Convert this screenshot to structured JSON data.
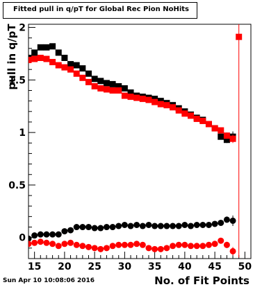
{
  "title": "Fitted pull in q/pT for Global Rec Pion NoHits",
  "footer_timestamp": "Sun Apr 10 10:08:06 2016",
  "chart_data": {
    "type": "scatter",
    "title": "Fitted pull in q/pT for Global Rec Pion NoHits",
    "xlabel": "No. of Fit Points",
    "ylabel": "pull in q/pT",
    "xlim": [
      14,
      51
    ],
    "ylim": [
      -0.2,
      2.03
    ],
    "x_ticks": [
      15,
      20,
      25,
      30,
      35,
      40,
      45,
      50
    ],
    "y_ticks": [
      0,
      0.5,
      1,
      1.5,
      2
    ],
    "y_tick_labels": [
      "0",
      "0.5",
      "1",
      "1.5",
      "2"
    ],
    "grid": false,
    "series": [
      {
        "marker": "square",
        "color": "#000000",
        "x": [
          14,
          15,
          16,
          17,
          18,
          19,
          20,
          21,
          22,
          23,
          24,
          25,
          26,
          27,
          28,
          29,
          30,
          31,
          32,
          33,
          34,
          35,
          36,
          37,
          38,
          39,
          40,
          41,
          42,
          43,
          44,
          45,
          46,
          47,
          48
        ],
        "y": [
          1.71,
          1.76,
          1.81,
          1.81,
          1.82,
          1.76,
          1.71,
          1.65,
          1.64,
          1.61,
          1.56,
          1.51,
          1.49,
          1.47,
          1.46,
          1.44,
          1.42,
          1.38,
          1.35,
          1.34,
          1.33,
          1.32,
          1.3,
          1.28,
          1.26,
          1.23,
          1.2,
          1.17,
          1.14,
          1.12,
          1.08,
          1.04,
          0.96,
          0.93,
          0.96
        ],
        "yerr": [
          0.01,
          0.01,
          0.01,
          0.01,
          0.01,
          0.01,
          0.01,
          0.01,
          0.01,
          0.01,
          0.01,
          0.01,
          0.01,
          0.01,
          0.01,
          0.01,
          0.01,
          0.01,
          0.01,
          0.01,
          0.01,
          0.01,
          0.01,
          0.01,
          0.01,
          0.01,
          0.01,
          0.01,
          0.01,
          0.01,
          0.01,
          0.02,
          0.02,
          0.03,
          0.05
        ]
      },
      {
        "marker": "square",
        "color": "#ff0000",
        "x": [
          14,
          15,
          16,
          17,
          18,
          19,
          20,
          21,
          22,
          23,
          24,
          25,
          26,
          27,
          28,
          29,
          30,
          31,
          32,
          33,
          34,
          35,
          36,
          37,
          38,
          39,
          40,
          41,
          42,
          43,
          44,
          45,
          46,
          47,
          48,
          49
        ],
        "y": [
          1.69,
          1.7,
          1.71,
          1.7,
          1.67,
          1.64,
          1.62,
          1.6,
          1.56,
          1.52,
          1.48,
          1.44,
          1.42,
          1.41,
          1.4,
          1.4,
          1.35,
          1.34,
          1.33,
          1.32,
          1.31,
          1.29,
          1.27,
          1.26,
          1.24,
          1.21,
          1.18,
          1.16,
          1.13,
          1.11,
          1.08,
          1.04,
          1.02,
          0.97,
          0.94,
          1.91
        ],
        "yerr": [
          0.01,
          0.01,
          0.01,
          0.01,
          0.01,
          0.01,
          0.01,
          0.01,
          0.01,
          0.01,
          0.01,
          0.01,
          0.01,
          0.01,
          0.01,
          0.01,
          0.01,
          0.01,
          0.01,
          0.01,
          0.01,
          0.01,
          0.01,
          0.01,
          0.01,
          0.01,
          0.01,
          0.01,
          0.01,
          0.01,
          0.01,
          0.02,
          0.02,
          0.03,
          0.04,
          2.1
        ]
      },
      {
        "marker": "circle",
        "color": "#000000",
        "x": [
          14,
          15,
          16,
          17,
          18,
          19,
          20,
          21,
          22,
          23,
          24,
          25,
          26,
          27,
          28,
          29,
          30,
          31,
          32,
          33,
          34,
          35,
          36,
          37,
          38,
          39,
          40,
          41,
          42,
          43,
          44,
          45,
          46,
          47,
          48
        ],
        "y": [
          -0.01,
          0.02,
          0.03,
          0.03,
          0.03,
          0.03,
          0.06,
          0.07,
          0.1,
          0.1,
          0.1,
          0.09,
          0.09,
          0.1,
          0.1,
          0.11,
          0.12,
          0.11,
          0.12,
          0.11,
          0.12,
          0.11,
          0.11,
          0.11,
          0.11,
          0.11,
          0.12,
          0.11,
          0.12,
          0.12,
          0.12,
          0.13,
          0.14,
          0.17,
          0.16
        ],
        "yerr": [
          0.01,
          0.01,
          0.01,
          0.01,
          0.01,
          0.01,
          0.01,
          0.01,
          0.01,
          0.01,
          0.01,
          0.01,
          0.01,
          0.01,
          0.01,
          0.01,
          0.01,
          0.01,
          0.01,
          0.01,
          0.01,
          0.01,
          0.01,
          0.01,
          0.01,
          0.01,
          0.01,
          0.01,
          0.01,
          0.01,
          0.01,
          0.02,
          0.02,
          0.03,
          0.05
        ]
      },
      {
        "marker": "circle",
        "color": "#ff0000",
        "x": [
          14,
          15,
          16,
          17,
          18,
          19,
          20,
          21,
          22,
          23,
          24,
          25,
          26,
          27,
          28,
          29,
          30,
          31,
          32,
          33,
          34,
          35,
          36,
          37,
          38,
          39,
          40,
          41,
          42,
          43,
          44,
          45,
          46,
          47,
          48
        ],
        "y": [
          -0.06,
          -0.05,
          -0.04,
          -0.05,
          -0.06,
          -0.08,
          -0.06,
          -0.05,
          -0.07,
          -0.08,
          -0.09,
          -0.1,
          -0.11,
          -0.1,
          -0.08,
          -0.07,
          -0.07,
          -0.07,
          -0.06,
          -0.07,
          -0.1,
          -0.11,
          -0.11,
          -0.1,
          -0.08,
          -0.07,
          -0.07,
          -0.08,
          -0.08,
          -0.08,
          -0.07,
          -0.06,
          -0.03,
          -0.07,
          -0.13
        ],
        "yerr": [
          0.01,
          0.01,
          0.01,
          0.01,
          0.01,
          0.01,
          0.01,
          0.01,
          0.01,
          0.01,
          0.01,
          0.01,
          0.01,
          0.01,
          0.01,
          0.01,
          0.01,
          0.01,
          0.01,
          0.01,
          0.01,
          0.01,
          0.01,
          0.01,
          0.01,
          0.01,
          0.01,
          0.01,
          0.01,
          0.01,
          0.01,
          0.02,
          0.02,
          0.03,
          0.04
        ]
      }
    ]
  }
}
